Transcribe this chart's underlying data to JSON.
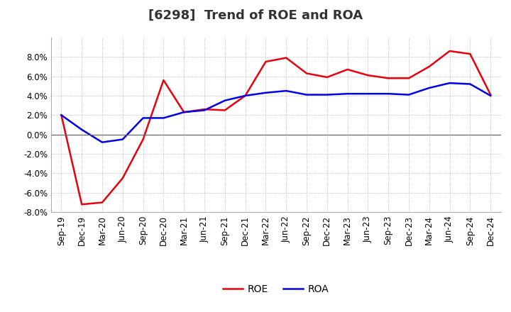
{
  "title": "[6298]  Trend of ROE and ROA",
  "x_labels": [
    "Sep-19",
    "Dec-19",
    "Mar-20",
    "Jun-20",
    "Sep-20",
    "Dec-20",
    "Mar-21",
    "Jun-21",
    "Sep-21",
    "Dec-21",
    "Mar-22",
    "Jun-22",
    "Sep-22",
    "Dec-22",
    "Mar-23",
    "Jun-23",
    "Sep-23",
    "Dec-23",
    "Mar-24",
    "Jun-24",
    "Sep-24",
    "Dec-24"
  ],
  "roe": [
    2.0,
    -7.2,
    -7.0,
    -4.5,
    -0.5,
    5.6,
    2.3,
    2.6,
    2.5,
    4.0,
    7.5,
    7.9,
    6.3,
    5.9,
    6.7,
    6.1,
    5.8,
    5.8,
    7.0,
    8.6,
    8.3,
    4.1
  ],
  "roa": [
    2.0,
    0.5,
    -0.8,
    -0.5,
    1.7,
    1.7,
    2.3,
    2.5,
    3.5,
    4.0,
    4.3,
    4.5,
    4.1,
    4.1,
    4.2,
    4.2,
    4.2,
    4.1,
    4.8,
    5.3,
    5.2,
    4.0
  ],
  "roe_color": "#e8000d",
  "roa_color": "#0000e8",
  "ylim": [
    -8.0,
    10.0
  ],
  "yticks": [
    -8.0,
    -6.0,
    -4.0,
    -2.0,
    0.0,
    2.0,
    4.0,
    6.0,
    8.0
  ],
  "background_color": "#ffffff",
  "plot_bg_color": "#ffffff",
  "grid_color": "#999999",
  "title_fontsize": 13,
  "legend_fontsize": 10,
  "tick_fontsize": 8.5
}
